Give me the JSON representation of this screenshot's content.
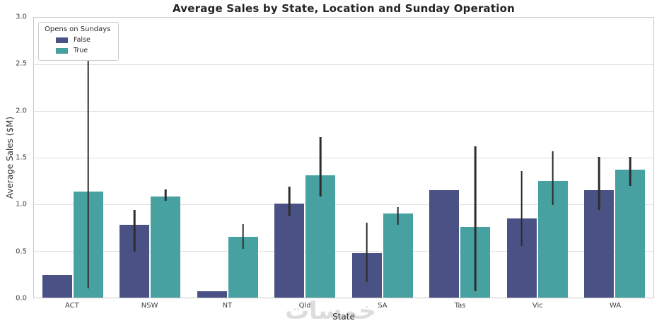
{
  "figure": {
    "watermark": "خمسات"
  },
  "chart_data": {
    "type": "bar",
    "title": "Average Sales by State, Location and Sunday Operation",
    "xlabel": "State",
    "ylabel": "Average Sales ($M)",
    "ylim": [
      0,
      3.0
    ],
    "yticks": [
      0.0,
      0.5,
      1.0,
      1.5,
      2.0,
      2.5,
      3.0
    ],
    "grid": true,
    "categories": [
      "ACT",
      "NSW",
      "NT",
      "Qld",
      "SA",
      "Tas",
      "Vic",
      "WA"
    ],
    "series": [
      {
        "name": "False",
        "color": "#4A5285",
        "values": [
          0.24,
          0.78,
          0.07,
          1.01,
          0.48,
          1.15,
          0.85,
          1.15
        ],
        "error_low": [
          null,
          0.49,
          null,
          0.87,
          0.17,
          null,
          0.55,
          0.94
        ],
        "error_high": [
          null,
          0.94,
          null,
          1.19,
          0.8,
          null,
          1.36,
          1.51
        ]
      },
      {
        "name": "True",
        "color": "#48A1A1",
        "values": [
          1.14,
          1.08,
          0.65,
          1.31,
          0.9,
          0.76,
          1.25,
          1.37
        ],
        "error_low": [
          0.1,
          1.04,
          0.52,
          1.08,
          0.78,
          0.07,
          0.99,
          1.2
        ],
        "error_high": [
          2.56,
          1.16,
          0.79,
          1.72,
          0.97,
          1.62,
          1.57,
          1.51
        ]
      }
    ],
    "error_bar_color": "#2d2d2d",
    "legend": {
      "title": "Opens on Sundays",
      "position": "upper left"
    }
  }
}
